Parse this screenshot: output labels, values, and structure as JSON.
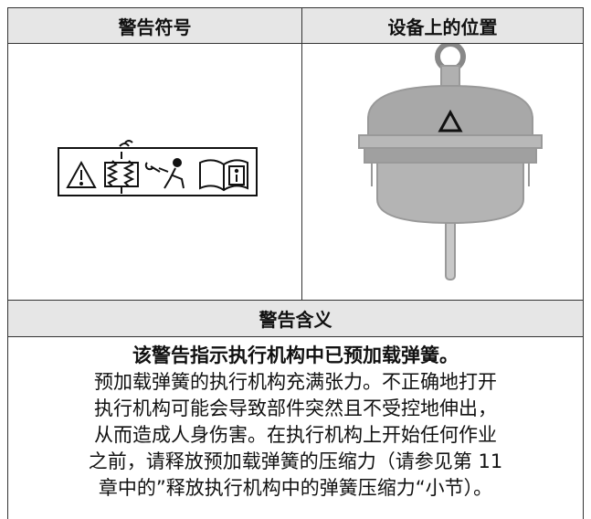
{
  "table": {
    "headers": [
      "警告符号",
      "设备上的位置"
    ],
    "meaning_header": "警告含义",
    "meaning_title": "该警告指示执行机构中已预加载弹簧。",
    "meaning_lines": [
      "预加载弹簧的执行机构充满张力。不正确地打开",
      "执行机构可能会导致部件突然且不受控地伸出，",
      "从而造成人身伤害。在执行机构上开始任何作业",
      "之前，请释放预加载弹簧的压缩力（请参见第 11",
      "章中的”释放执行机构中的弹簧压缩力“小节）。"
    ]
  }
}
